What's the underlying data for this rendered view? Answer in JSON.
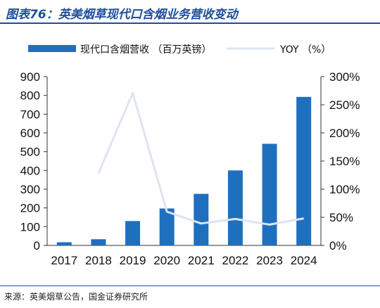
{
  "figure": {
    "title": "图表76：英美烟草现代口含烟业务营收变动",
    "source": "来源：英美烟草公告，国金证券研究所"
  },
  "colors": {
    "bar": "#1f6fbf",
    "line": "#dde4f1",
    "rule": "#1f4e9a"
  },
  "chart_data": {
    "type": "bar",
    "categories": [
      "2017",
      "2018",
      "2019",
      "2020",
      "2021",
      "2022",
      "2023",
      "2024"
    ],
    "series": [
      {
        "name": "现代口含烟营收 （百万英镑）",
        "type": "bar",
        "axis": "left",
        "values": [
          17,
          33,
          130,
          197,
          275,
          400,
          542,
          792
        ]
      },
      {
        "name": "YOY （%）",
        "type": "line",
        "axis": "right",
        "values": [
          null,
          128,
          271,
          60,
          39,
          47,
          37,
          48
        ]
      }
    ],
    "ylim": [
      0,
      900
    ],
    "y2lim": [
      0,
      300
    ],
    "yticks": [
      "0",
      "100",
      "200",
      "300",
      "400",
      "500",
      "600",
      "700",
      "800",
      "900"
    ],
    "y2ticks": [
      "0%",
      "50%",
      "100%",
      "150%",
      "200%",
      "250%",
      "300%"
    ],
    "legend": "top",
    "grid": false
  }
}
